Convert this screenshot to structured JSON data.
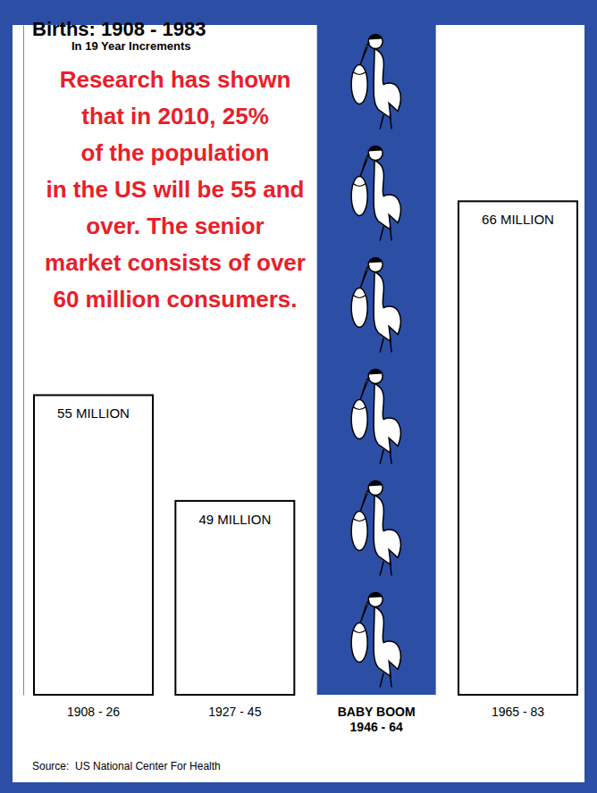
{
  "chart_data": {
    "type": "bar",
    "title": "Births: 1908 - 1983",
    "subtitle": "In 19 Year Increments",
    "annotation": "Research has shown\nthat in 2010, 25%\nof the population\nin the US will be 55 and\nover. The senior\nmarket consists of over\n60 million consumers.",
    "source": "Source:  US National Center For Health",
    "categories": [
      "1908 - 26",
      "1927 - 45",
      "BABY BOOM\n1946 - 64",
      "1965 - 83"
    ],
    "values": [
      55,
      49,
      76,
      66
    ],
    "value_labels": [
      "55 MILLION",
      "49 MILLION",
      null,
      "66 MILLION"
    ],
    "colors": [
      "#ffffff",
      "#ffffff",
      "#2c4ea5",
      "#ffffff"
    ],
    "data_labels": true,
    "tick_labels": "x",
    "ylim": [
      38,
      76
    ]
  }
}
